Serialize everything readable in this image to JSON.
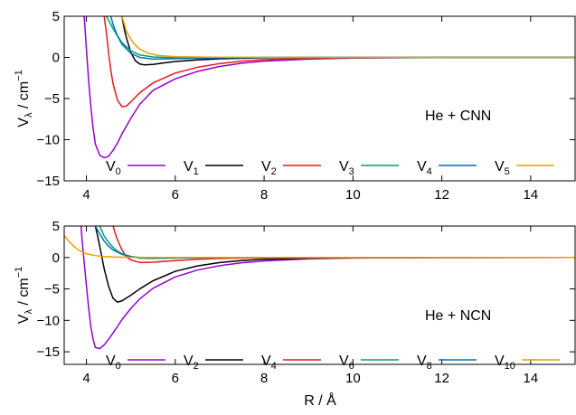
{
  "chart_data": [
    {
      "type": "line",
      "annotation": "He + CNN",
      "xlabel": "",
      "ylabel_main": "V",
      "ylabel_sub": "λ",
      "ylabel_unit": " / cm",
      "ylabel_sup": "−1",
      "xlim": [
        3.5,
        15
      ],
      "ylim": [
        -15,
        5
      ],
      "xticks": [
        4,
        6,
        8,
        10,
        12,
        14
      ],
      "yticks": [
        5,
        0,
        -5,
        -10,
        -15
      ],
      "legend": "bottom, single row",
      "series": [
        {
          "name_main": "V",
          "name_sub": "0",
          "color": "#9400d3",
          "x": [
            3.95,
            4.0,
            4.05,
            4.1,
            4.15,
            4.2,
            4.3,
            4.4,
            4.5,
            4.6,
            4.7,
            4.8,
            5.0,
            5.2,
            5.5,
            6.0,
            6.5,
            7.0,
            7.5,
            8.0,
            9.0,
            10.0,
            12.0,
            15.0
          ],
          "y": [
            5.0,
            1.0,
            -2.8,
            -6.0,
            -8.6,
            -10.5,
            -11.9,
            -12.2,
            -12.0,
            -11.3,
            -10.4,
            -9.3,
            -7.4,
            -5.7,
            -4.0,
            -2.6,
            -1.7,
            -1.1,
            -0.7,
            -0.45,
            -0.2,
            -0.08,
            -0.02,
            0.0
          ]
        },
        {
          "name_main": "V",
          "name_sub": "1",
          "color": "#000000",
          "x": [
            4.8,
            4.85,
            4.9,
            5.0,
            5.1,
            5.2,
            5.3,
            5.5,
            5.7,
            6.0,
            6.5,
            7.0,
            8.0,
            9.0,
            10.0,
            15.0
          ],
          "y": [
            5.0,
            3.5,
            2.4,
            0.6,
            -0.4,
            -0.8,
            -0.9,
            -0.85,
            -0.7,
            -0.5,
            -0.3,
            -0.17,
            -0.05,
            -0.02,
            -0.01,
            0.0
          ]
        },
        {
          "name_main": "V",
          "name_sub": "2",
          "color": "#e31a1c",
          "x": [
            4.4,
            4.45,
            4.5,
            4.55,
            4.6,
            4.7,
            4.8,
            4.9,
            5.0,
            5.2,
            5.5,
            6.0,
            6.5,
            7.0,
            7.5,
            8.0,
            9.0,
            10.0,
            12.0,
            15.0
          ],
          "y": [
            5.0,
            3.0,
            0.5,
            -1.6,
            -3.2,
            -5.2,
            -6.0,
            -5.9,
            -5.4,
            -4.3,
            -3.1,
            -1.9,
            -1.2,
            -0.75,
            -0.45,
            -0.28,
            -0.1,
            -0.04,
            -0.01,
            0.0
          ]
        },
        {
          "name_main": "V",
          "name_sub": "3",
          "color": "#009e73",
          "x": [
            4.45,
            4.5,
            4.6,
            4.7,
            4.8,
            5.0,
            5.2,
            5.5,
            6.0,
            7.0,
            8.0,
            15.0
          ],
          "y": [
            5.0,
            4.5,
            3.5,
            2.6,
            1.8,
            0.8,
            0.3,
            0.05,
            -0.05,
            -0.02,
            0.0,
            0.0
          ]
        },
        {
          "name_main": "V",
          "name_sub": "4",
          "color": "#0072b2",
          "x": [
            4.55,
            4.6,
            4.7,
            4.8,
            5.0,
            5.2,
            5.5,
            6.0,
            7.0,
            8.0,
            15.0
          ],
          "y": [
            5.0,
            4.0,
            2.6,
            1.6,
            0.5,
            0.0,
            -0.2,
            -0.15,
            -0.05,
            -0.02,
            0.0
          ]
        },
        {
          "name_main": "V",
          "name_sub": "5",
          "color": "#e69f00",
          "x": [
            4.8,
            4.9,
            5.0,
            5.1,
            5.2,
            5.4,
            5.6,
            6.0,
            7.0,
            8.0,
            15.0
          ],
          "y": [
            5.0,
            3.2,
            2.2,
            1.5,
            1.0,
            0.5,
            0.25,
            0.08,
            0.01,
            0.0,
            0.0
          ]
        }
      ]
    },
    {
      "type": "line",
      "annotation": "He + NCN",
      "xlabel": "R / Å",
      "ylabel_main": "V",
      "ylabel_sub": "λ",
      "ylabel_unit": " / cm",
      "ylabel_sup": "−1",
      "xlim": [
        3.5,
        15
      ],
      "ylim": [
        -17,
        5
      ],
      "xticks": [
        4,
        6,
        8,
        10,
        12,
        14
      ],
      "yticks": [
        5,
        0,
        -5,
        -10,
        -15
      ],
      "legend": "bottom, single row",
      "series": [
        {
          "name_main": "V",
          "name_sub": "0",
          "color": "#9400d3",
          "x": [
            3.88,
            3.9,
            3.95,
            4.0,
            4.05,
            4.1,
            4.15,
            4.2,
            4.3,
            4.4,
            4.5,
            4.6,
            4.8,
            5.0,
            5.2,
            5.5,
            6.0,
            6.5,
            7.0,
            7.5,
            8.0,
            9.0,
            10.0,
            12.0,
            15.0
          ],
          "y": [
            5.0,
            3.0,
            -0.8,
            -4.5,
            -8.0,
            -11.0,
            -13.0,
            -14.3,
            -14.5,
            -13.9,
            -13.0,
            -12.0,
            -9.9,
            -8.1,
            -6.6,
            -4.9,
            -3.1,
            -2.0,
            -1.3,
            -0.85,
            -0.55,
            -0.22,
            -0.09,
            -0.02,
            0.0
          ]
        },
        {
          "name_main": "V",
          "name_sub": "2",
          "color": "#000000",
          "x": [
            4.2,
            4.25,
            4.3,
            4.35,
            4.4,
            4.5,
            4.6,
            4.7,
            4.8,
            5.0,
            5.2,
            5.5,
            6.0,
            6.5,
            7.0,
            7.5,
            8.0,
            9.0,
            10.0,
            12.0,
            15.0
          ],
          "y": [
            5.0,
            3.5,
            1.8,
            0.0,
            -1.8,
            -4.6,
            -6.5,
            -7.1,
            -6.9,
            -6.0,
            -5.0,
            -3.7,
            -2.2,
            -1.35,
            -0.8,
            -0.48,
            -0.28,
            -0.1,
            -0.04,
            -0.01,
            0.0
          ]
        },
        {
          "name_main": "V",
          "name_sub": "4",
          "color": "#e31a1c",
          "x": [
            4.6,
            4.65,
            4.7,
            4.8,
            4.9,
            5.0,
            5.2,
            5.5,
            6.0,
            6.5,
            7.0,
            8.0,
            15.0
          ],
          "y": [
            5.0,
            3.8,
            2.8,
            1.2,
            0.1,
            -0.4,
            -0.8,
            -0.75,
            -0.5,
            -0.28,
            -0.15,
            -0.05,
            0.0
          ]
        },
        {
          "name_main": "V",
          "name_sub": "6",
          "color": "#009e73",
          "x": [
            4.3,
            4.35,
            4.4,
            4.5,
            4.6,
            4.7,
            4.8,
            5.0,
            5.2,
            5.5,
            6.0,
            7.0,
            15.0
          ],
          "y": [
            5.0,
            4.2,
            3.4,
            2.4,
            1.6,
            1.0,
            0.6,
            0.15,
            -0.1,
            -0.15,
            -0.08,
            -0.02,
            0.0
          ]
        },
        {
          "name_main": "V",
          "name_sub": "8",
          "color": "#0072b2",
          "x": [
            4.2,
            4.3,
            4.4,
            4.5,
            4.6,
            4.8,
            5.0,
            5.2,
            5.5,
            6.0,
            7.0,
            15.0
          ],
          "y": [
            5.0,
            3.8,
            2.6,
            1.8,
            1.2,
            0.5,
            0.15,
            0.0,
            -0.05,
            -0.03,
            0.0,
            0.0
          ]
        },
        {
          "name_main": "V",
          "name_sub": "10",
          "color": "#e69f00",
          "x": [
            3.5,
            3.6,
            3.7,
            3.8,
            3.9,
            4.0,
            4.2,
            4.4,
            4.6,
            5.0,
            5.5,
            6.0,
            7.0,
            15.0
          ],
          "y": [
            3.5,
            2.6,
            1.9,
            1.3,
            0.9,
            0.6,
            0.3,
            0.15,
            0.07,
            0.02,
            0.0,
            0.0,
            0.0,
            0.0
          ]
        }
      ]
    }
  ]
}
